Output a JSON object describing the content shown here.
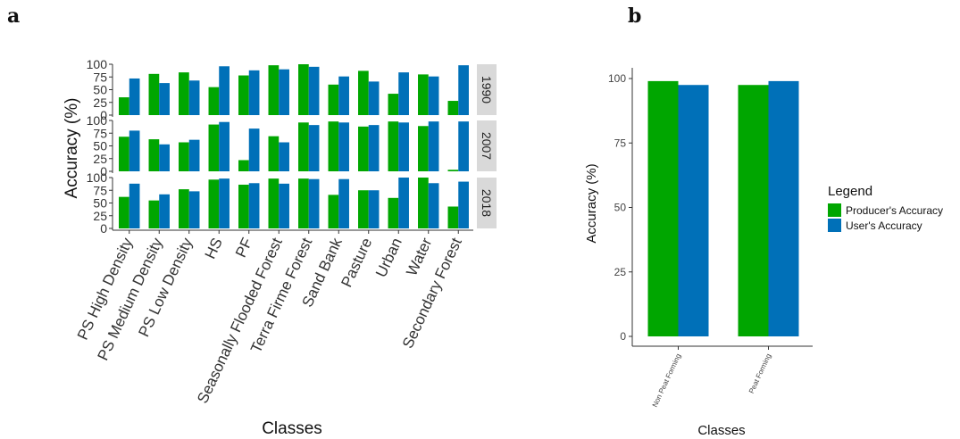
{
  "panel_labels": {
    "a": "a",
    "b": "b"
  },
  "colors": {
    "producer": "#00a600",
    "user": "#0070b8",
    "strip": "#d9d9d9"
  },
  "chart_data": [
    {
      "type": "bar",
      "panel": "a",
      "facet_type": "rows",
      "xlabel": "Classes",
      "ylabel": "Accuracy (%)",
      "ylim": [
        0,
        100
      ],
      "yticks": [
        0,
        25,
        50,
        75,
        100
      ],
      "categories": [
        "PS High Density",
        "PS Medium Density",
        "PS Low Density",
        "HS",
        "PF",
        "Seasonally Flooded Forest",
        "Terra Firme Forest",
        "Sand Bank",
        "Pasture",
        "Urban",
        "Water",
        "Secondary Forest"
      ],
      "facets": [
        {
          "label": "1990",
          "series": [
            {
              "values": [
                35,
                81,
                84,
                55,
                78,
                98,
                100,
                60,
                87,
                42,
                80,
                28
              ]
            },
            {
              "values": [
                72,
                63,
                68,
                96,
                88,
                90,
                95,
                76,
                66,
                84,
                76,
                98
              ]
            }
          ]
        },
        {
          "label": "2007",
          "series": [
            {
              "values": [
                68,
                63,
                57,
                92,
                22,
                69,
                96,
                98,
                88,
                98,
                89,
                3
              ]
            },
            {
              "values": [
                80,
                53,
                62,
                97,
                84,
                57,
                91,
                96,
                91,
                96,
                98,
                98
              ]
            }
          ]
        },
        {
          "label": "2018",
          "series": [
            {
              "values": [
                62,
                55,
                77,
                96,
                86,
                98,
                98,
                66,
                75,
                60,
                100,
                43
              ]
            },
            {
              "values": [
                88,
                67,
                73,
                98,
                89,
                88,
                97,
                97,
                75,
                100,
                89,
                92
              ]
            }
          ]
        }
      ]
    },
    {
      "type": "bar",
      "panel": "b",
      "xlabel": "Classes",
      "ylabel": "Accuracy (%)",
      "ylim": [
        0,
        100
      ],
      "yticks": [
        0,
        25,
        50,
        75,
        100
      ],
      "categories": [
        "Non Peat Forming",
        "Peat Forming"
      ],
      "legend_title": "Legend",
      "legend_placement": "right",
      "series": [
        {
          "name": "Producer's Accuracy",
          "values": [
            99,
            97.5
          ]
        },
        {
          "name": "User's Accuracy",
          "values": [
            97.5,
            99
          ]
        }
      ]
    }
  ]
}
